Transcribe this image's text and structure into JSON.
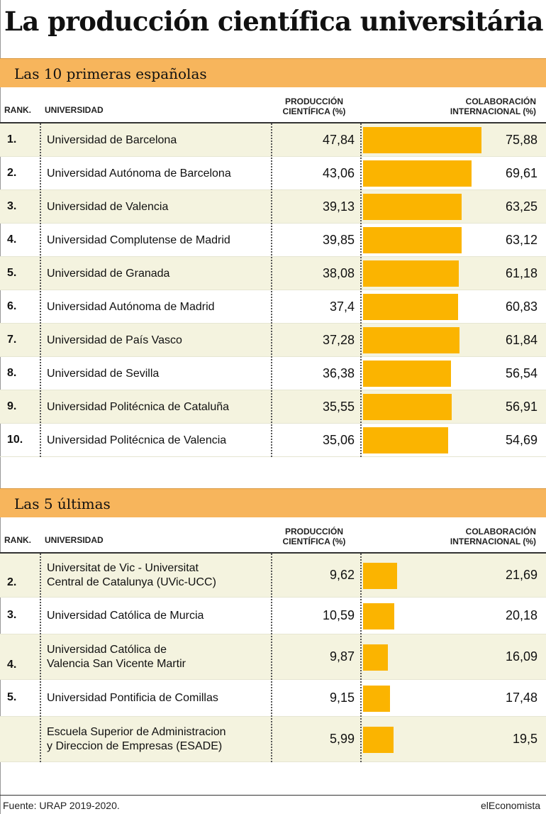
{
  "title": "La producción científica universitária",
  "headers": {
    "rank": "RANK.",
    "university": "UNIVERSIDAD",
    "production": "PRODUCCIÓN CIENTÍFICA (%)",
    "collaboration": "COLABORACIÓN INTERNACIONAL (%)"
  },
  "colors": {
    "bar": "#fbb400",
    "band": "#f7b55c",
    "shade": "#f4f3df"
  },
  "chart_data": [
    {
      "type": "table",
      "title": "Las 10 primeras españolas",
      "columns": [
        "RANK.",
        "UNIVERSIDAD",
        "PRODUCCIÓN CIENTÍFICA (%)",
        "COLABORACIÓN INTERNACIONAL (%)"
      ],
      "rows": [
        {
          "rank": "1.",
          "lines": [
            "Universidad de Barcelona"
          ],
          "production": "47,84",
          "collaboration": "75,88",
          "collab_value": 75.88
        },
        {
          "rank": "2.",
          "lines": [
            "Universidad Autónoma de Barcelona"
          ],
          "production": "43,06",
          "collaboration": "69,61",
          "collab_value": 69.61
        },
        {
          "rank": "3.",
          "lines": [
            "Universidad de Valencia"
          ],
          "production": "39,13",
          "collaboration": "63,25",
          "collab_value": 63.25
        },
        {
          "rank": "4.",
          "lines": [
            "Universidad Complutense de Madrid"
          ],
          "production": "39,85",
          "collaboration": "63,12",
          "collab_value": 63.12
        },
        {
          "rank": "5.",
          "lines": [
            "Universidad de Granada"
          ],
          "production": "38,08",
          "collaboration": "61,18",
          "collab_value": 61.18
        },
        {
          "rank": "6.",
          "lines": [
            "Universidad Autónoma de Madrid"
          ],
          "production": "37,4",
          "collaboration": "60,83",
          "collab_value": 60.83
        },
        {
          "rank": "7.",
          "lines": [
            "Universidad de País Vasco"
          ],
          "production": "37,28",
          "collaboration": "61,84",
          "collab_value": 61.84
        },
        {
          "rank": "8.",
          "lines": [
            "Universidad de Sevilla"
          ],
          "production": "36,38",
          "collaboration": "56,54",
          "collab_value": 56.54
        },
        {
          "rank": "9.",
          "lines": [
            "Universidad Politécnica de Cataluña"
          ],
          "production": "35,55",
          "collaboration": "56,91",
          "collab_value": 56.91
        },
        {
          "rank": "10.",
          "lines": [
            "Universidad Politécnica de Valencia"
          ],
          "production": "35,06",
          "collaboration": "54,69",
          "collab_value": 54.69
        }
      ]
    },
    {
      "type": "table",
      "title": "Las 5 últimas",
      "columns": [
        "RANK.",
        "UNIVERSIDAD",
        "PRODUCCIÓN CIENTÍFICA (%)",
        "COLABORACIÓN INTERNACIONAL (%)"
      ],
      "rows": [
        {
          "rank": "2.",
          "lines": [
            "Universitat de Vic - Universitat",
            "Central de Catalunya (UVic-UCC)"
          ],
          "production": "9,62",
          "collaboration": "21,69",
          "collab_value": 21.69
        },
        {
          "rank": "3.",
          "lines": [
            "Universidad Católica de Murcia"
          ],
          "production": "10,59",
          "collaboration": "20,18",
          "collab_value": 20.18
        },
        {
          "rank": "4.",
          "lines": [
            "Universidad Católica de",
            "Valencia San Vicente Martir"
          ],
          "production": "9,87",
          "collaboration": "16,09",
          "collab_value": 16.09
        },
        {
          "rank": "5.",
          "lines": [
            "Universidad Pontificia de Comillas"
          ],
          "production": "9,15",
          "collaboration": "17,48",
          "collab_value": 17.48
        },
        {
          "rank": "",
          "lines": [
            "Escuela Superior de Administracion",
            "y Direccion de Empresas (ESADE)"
          ],
          "production": "5,99",
          "collaboration": "19,5",
          "collab_value": 19.5
        }
      ]
    }
  ],
  "footer": {
    "source": "Fuente: URAP 2019-2020.",
    "brand": "elEconomista"
  }
}
